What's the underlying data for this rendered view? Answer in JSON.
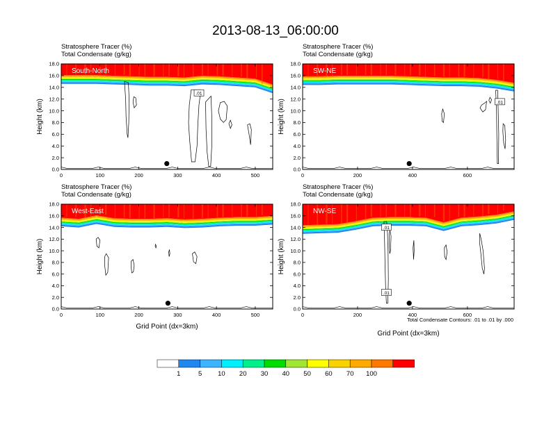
{
  "chart_data": {
    "type": "cross-section contour panels",
    "title": "2013-08-13_06:00:00",
    "xlabel": "Grid Point (dx=3km)",
    "ylabel": "Height (km)",
    "annotation": "Total Condensate Contours: .01 to .01 by .000",
    "field_labels": [
      "Stratosphere Tracer   (%)",
      "Total Condensate   (g/kg)"
    ],
    "yticks": [
      "0.0",
      "2.0",
      "4.0",
      "6.0",
      "8.0",
      "10.0",
      "12.0",
      "14.0",
      "16.0",
      "18.0"
    ],
    "ylim": [
      0,
      18
    ],
    "legend": {
      "labels": [
        "1",
        "5",
        "10",
        "20",
        "30",
        "40",
        "50",
        "60",
        "70",
        "100"
      ],
      "colors": [
        "#ffffff",
        "#1e87f0",
        "#3cb4ff",
        "#00f0ff",
        "#00f08c",
        "#00dc00",
        "#a0e632",
        "#ffff00",
        "#fad200",
        "#ffaa00",
        "#ff7800",
        "#ff0000"
      ]
    },
    "panels": [
      {
        "name": "South-North",
        "xlim": [
          0,
          545
        ],
        "xticks": [
          "0",
          "100",
          "200",
          "300",
          "400",
          "500"
        ],
        "tracer_base_km": [
          14.6,
          14.6,
          14.6,
          14.5,
          14.4,
          14.3,
          14.3,
          14.2,
          14.5,
          14.4,
          14.2,
          14.0,
          13.0
        ],
        "marker_x": 272,
        "contour_labels": [
          {
            "text": ".01",
            "x": 355,
            "y_km": 13.0
          }
        ]
      },
      {
        "name": "SW-NE",
        "xlim": [
          0,
          770
        ],
        "xticks": [
          "0",
          "200",
          "400",
          "600"
        ],
        "tracer_base_km": [
          14.4,
          14.4,
          14.5,
          14.5,
          14.5,
          14.5,
          14.4,
          14.3,
          14.2,
          14.2,
          14.1,
          13.8,
          13.3
        ],
        "marker_x": 388,
        "contour_labels": [
          {
            "text": ".01",
            "x": 718,
            "y_km": 11.5
          }
        ]
      },
      {
        "name": "West-East",
        "xlim": [
          0,
          545
        ],
        "xticks": [
          "0",
          "100",
          "200",
          "300",
          "400",
          "500"
        ],
        "tracer_base_km": [
          14.2,
          14.0,
          14.6,
          14.1,
          14.0,
          14.0,
          14.1,
          13.9,
          14.0,
          14.2,
          14.3,
          14.3,
          14.5
        ],
        "marker_x": 275,
        "contour_labels": []
      },
      {
        "name": "NW-SE",
        "xlim": [
          0,
          770
        ],
        "xticks": [
          "0",
          "200",
          "400",
          "600"
        ],
        "tracer_base_km": [
          12.9,
          13.0,
          13.1,
          13.6,
          14.2,
          14.3,
          14.3,
          14.2,
          13.4,
          14.2,
          14.4,
          14.7,
          15.3
        ],
        "marker_x": 388,
        "contour_labels": [
          {
            "text": ".01",
            "x": 305,
            "y_km": 2.8
          },
          {
            "text": ".01",
            "x": 305,
            "y_km": 14.0
          }
        ]
      }
    ]
  }
}
